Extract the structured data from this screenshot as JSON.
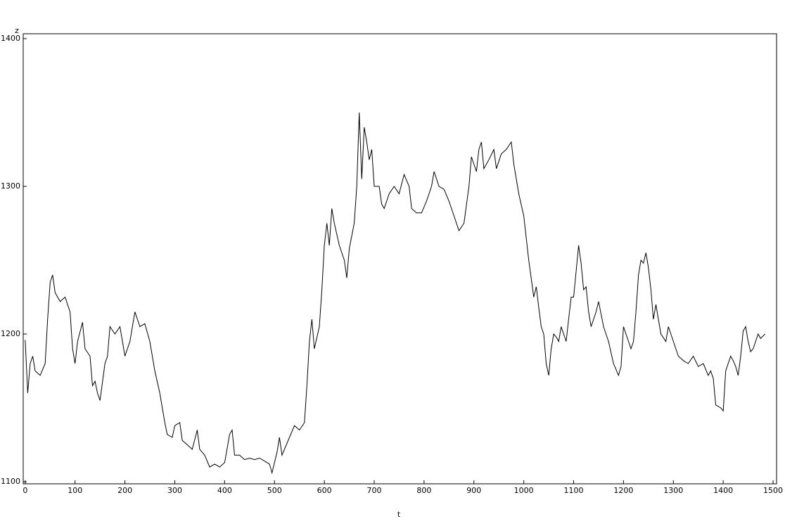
{
  "chart_data": {
    "type": "line",
    "xlabel": "t",
    "ylabel": "z",
    "xlim": [
      -4,
      1507
    ],
    "ylim": [
      1098.6,
      1403.3
    ],
    "xticks": [
      0,
      100,
      200,
      300,
      400,
      500,
      600,
      700,
      800,
      900,
      1000,
      1100,
      1200,
      1300,
      1400,
      1500
    ],
    "yticks": [
      1100,
      1200,
      1300,
      1400
    ],
    "color": "#000000",
    "x": [
      0,
      5,
      10,
      15,
      20,
      30,
      40,
      45,
      50,
      55,
      60,
      70,
      80,
      90,
      95,
      100,
      105,
      115,
      120,
      130,
      135,
      140,
      145,
      150,
      160,
      165,
      170,
      180,
      190,
      195,
      200,
      210,
      220,
      230,
      240,
      250,
      260,
      270,
      280,
      285,
      295,
      300,
      310,
      315,
      325,
      335,
      345,
      350,
      360,
      370,
      380,
      390,
      400,
      410,
      415,
      420,
      430,
      440,
      450,
      460,
      470,
      480,
      490,
      495,
      505,
      510,
      515,
      520,
      530,
      540,
      550,
      560,
      565,
      570,
      575,
      580,
      590,
      595,
      600,
      605,
      610,
      615,
      620,
      630,
      640,
      645,
      650,
      660,
      665,
      670,
      675,
      680,
      685,
      690,
      695,
      700,
      710,
      715,
      720,
      730,
      740,
      750,
      760,
      770,
      775,
      785,
      795,
      805,
      815,
      820,
      830,
      840,
      850,
      860,
      870,
      880,
      890,
      895,
      905,
      910,
      915,
      920,
      930,
      940,
      945,
      955,
      965,
      975,
      980,
      990,
      1000,
      1010,
      1020,
      1025,
      1030,
      1035,
      1040,
      1045,
      1050,
      1055,
      1060,
      1065,
      1070,
      1075,
      1080,
      1085,
      1090,
      1095,
      1100,
      1110,
      1115,
      1120,
      1125,
      1130,
      1135,
      1140,
      1145,
      1150,
      1160,
      1170,
      1180,
      1190,
      1195,
      1200,
      1205,
      1210,
      1215,
      1220,
      1225,
      1230,
      1235,
      1240,
      1245,
      1250,
      1255,
      1260,
      1265,
      1270,
      1275,
      1285,
      1290,
      1300,
      1310,
      1320,
      1330,
      1340,
      1350,
      1360,
      1370,
      1375,
      1380,
      1385,
      1395,
      1400,
      1405,
      1410,
      1415,
      1420,
      1425,
      1430,
      1435,
      1440,
      1445,
      1450,
      1455,
      1460,
      1465,
      1470,
      1475,
      1484
    ],
    "values": [
      1196,
      1160,
      1180,
      1185,
      1175,
      1172,
      1180,
      1210,
      1235,
      1240,
      1228,
      1222,
      1225,
      1215,
      1190,
      1180,
      1195,
      1208,
      1190,
      1185,
      1165,
      1168,
      1160,
      1155,
      1180,
      1185,
      1205,
      1200,
      1205,
      1195,
      1185,
      1195,
      1215,
      1205,
      1207,
      1195,
      1175,
      1160,
      1140,
      1132,
      1130,
      1138,
      1140,
      1128,
      1125,
      1122,
      1135,
      1122,
      1118,
      1110,
      1112,
      1110,
      1113,
      1132,
      1135,
      1118,
      1118,
      1115,
      1116,
      1115,
      1116,
      1114,
      1112,
      1106,
      1120,
      1130,
      1118,
      1122,
      1130,
      1138,
      1135,
      1140,
      1165,
      1195,
      1210,
      1190,
      1205,
      1230,
      1260,
      1275,
      1260,
      1285,
      1275,
      1260,
      1250,
      1238,
      1258,
      1275,
      1300,
      1350,
      1305,
      1340,
      1330,
      1318,
      1325,
      1300,
      1300,
      1288,
      1285,
      1295,
      1300,
      1295,
      1308,
      1300,
      1285,
      1282,
      1282,
      1290,
      1300,
      1310,
      1300,
      1298,
      1290,
      1280,
      1270,
      1275,
      1300,
      1320,
      1310,
      1325,
      1330,
      1312,
      1318,
      1325,
      1312,
      1322,
      1325,
      1330,
      1315,
      1295,
      1280,
      1250,
      1225,
      1232,
      1218,
      1205,
      1200,
      1180,
      1172,
      1190,
      1200,
      1198,
      1195,
      1205,
      1200,
      1195,
      1210,
      1225,
      1225,
      1260,
      1248,
      1230,
      1232,
      1215,
      1205,
      1210,
      1215,
      1222,
      1205,
      1195,
      1180,
      1172,
      1178,
      1205,
      1200,
      1195,
      1190,
      1195,
      1215,
      1240,
      1250,
      1248,
      1255,
      1245,
      1230,
      1210,
      1220,
      1210,
      1200,
      1195,
      1205,
      1195,
      1185,
      1182,
      1180,
      1185,
      1178,
      1180,
      1172,
      1175,
      1170,
      1152,
      1150,
      1148,
      1175,
      1180,
      1185,
      1182,
      1178,
      1172,
      1185,
      1202,
      1205,
      1195,
      1188,
      1190,
      1195,
      1200,
      1197,
      1200
    ]
  }
}
